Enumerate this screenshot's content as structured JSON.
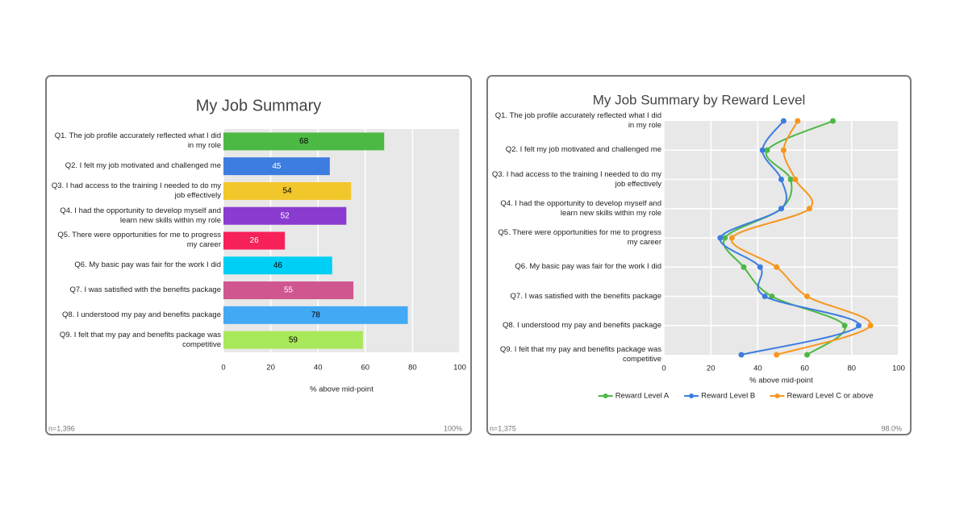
{
  "chart_data": [
    {
      "type": "bar",
      "orientation": "horizontal",
      "title": "My Job Summary",
      "categories": [
        "Q1. The job profile accurately reflected what I did in my role",
        "Q2. I felt my job motivated and challenged me",
        "Q3. I had access to the training I needed to do my job effectively",
        "Q4. I had the opportunity to develop myself and learn new skills within my role",
        "Q5. There were opportunities for me to progress my career",
        "Q6. My basic pay was fair for the work I did",
        "Q7. I was satisfied with the benefits package",
        "Q8. I understood my pay and benefits package",
        "Q9. I felt that my pay and benefits package was competitive"
      ],
      "values": [
        68,
        45,
        54,
        52,
        26,
        46,
        55,
        78,
        59
      ],
      "colors": [
        "#4cb944",
        "#3d7de0",
        "#f2c72c",
        "#8a3bd0",
        "#f7215a",
        "#00cff5",
        "#d0568f",
        "#42a9f5",
        "#a9e85a"
      ],
      "xlim": [
        0,
        100
      ],
      "xticks": [
        0,
        20,
        40,
        60,
        80,
        100
      ],
      "xlabel": "% above mid-point",
      "grid": true,
      "note": "n=1,396",
      "coverage": "100%"
    },
    {
      "type": "line",
      "orientation": "horizontal",
      "title": "My Job Summary by Reward Level",
      "categories": [
        "Q1. The job profile accurately reflected what I did in my role",
        "Q2. I felt my job motivated and challenged me",
        "Q3. I had access to the training I needed to do my job effectively",
        "Q4. I had the opportunity to develop myself and learn new skills within my role",
        "Q5. There were opportunities for me to progress my career",
        "Q6. My basic pay was fair for the work I did",
        "Q7. I was satisfied with the benefits package",
        "Q8. I understood my pay and benefits package",
        "Q9. I felt that my pay and benefits package was competitive"
      ],
      "series": [
        {
          "name": "Reward Level A",
          "color": "#4cb944",
          "values": [
            72,
            44,
            54,
            50,
            26,
            34,
            46,
            77,
            61
          ]
        },
        {
          "name": "Reward Level B",
          "color": "#3d7de0",
          "values": [
            51,
            42,
            50,
            50,
            24,
            41,
            43,
            83,
            33
          ]
        },
        {
          "name": "Reward Level C or above",
          "color": "#f7971e",
          "values": [
            57,
            51,
            56,
            62,
            29,
            48,
            61,
            88,
            48
          ]
        }
      ],
      "xlim": [
        0,
        100
      ],
      "xticks": [
        0,
        20,
        40,
        60,
        80,
        100
      ],
      "xlabel": "% above mid-point",
      "grid": true,
      "legend": "bottom",
      "note": "n=1,375",
      "coverage": "98.0%"
    }
  ]
}
